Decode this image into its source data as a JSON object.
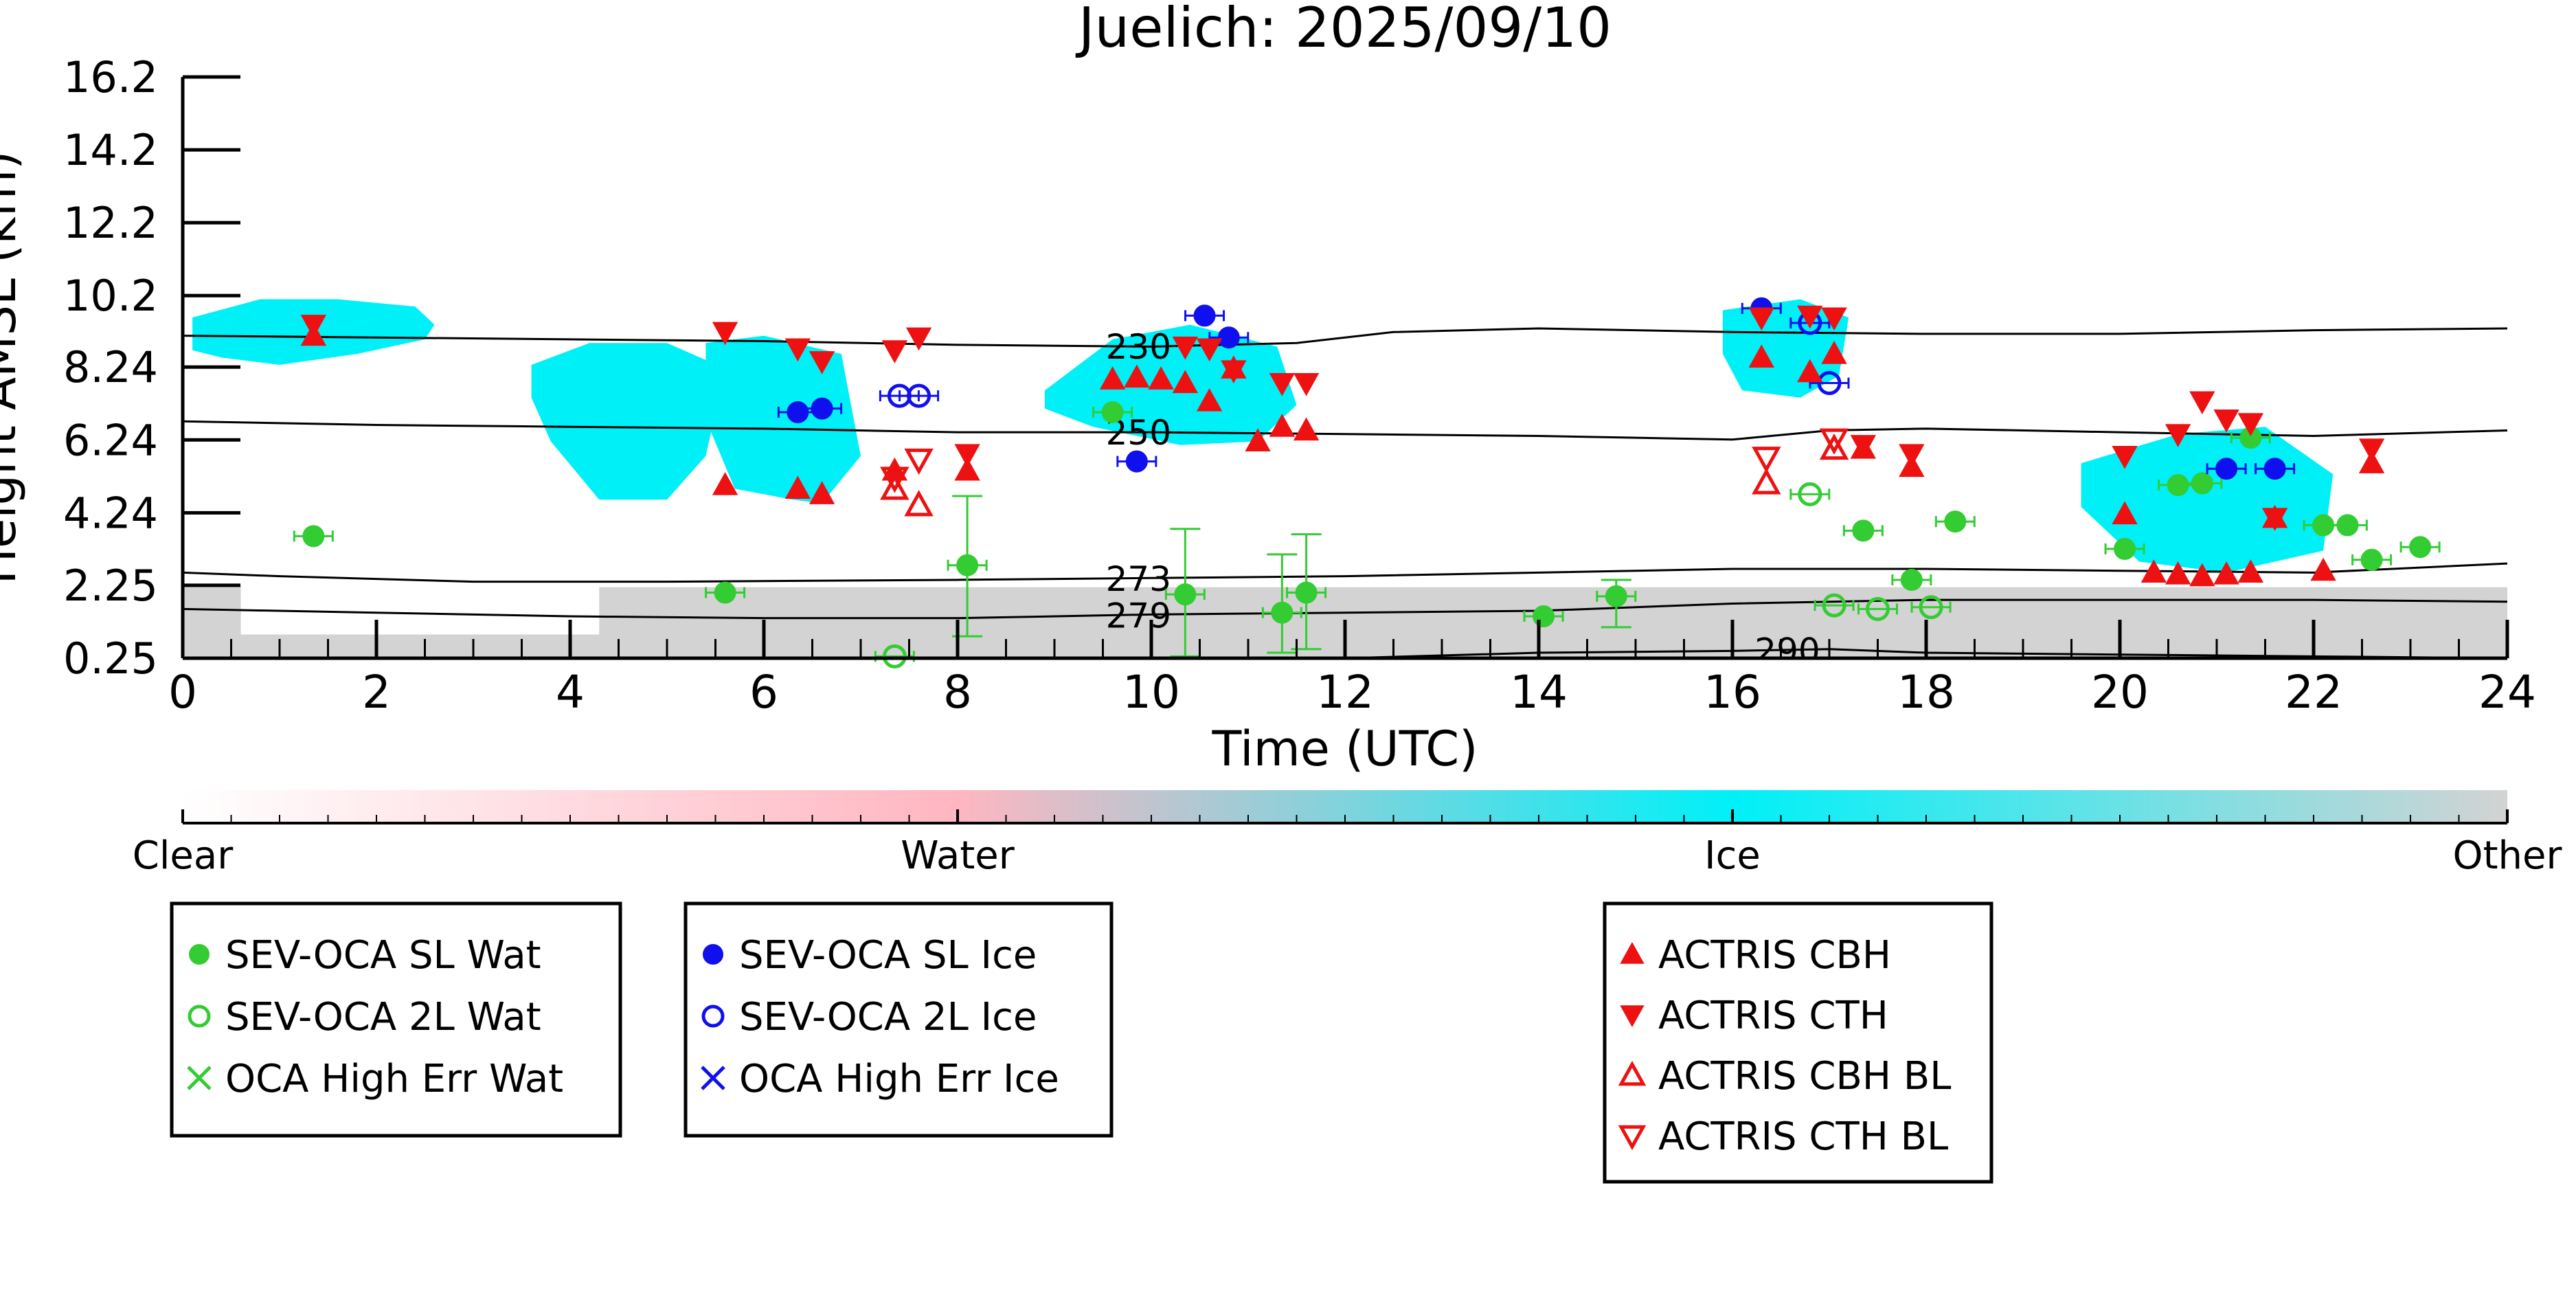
{
  "chart_data": {
    "type": "scatter",
    "title": "Juelich: 2025/09/10",
    "xlabel": "Time (UTC)",
    "ylabel": "Height AMSL (km)",
    "xlim": [
      0,
      24
    ],
    "ylim": [
      0.25,
      16.2
    ],
    "x_ticks": [
      "0",
      "2",
      "4",
      "6",
      "8",
      "10",
      "12",
      "14",
      "16",
      "18",
      "20",
      "22",
      "24"
    ],
    "y_ticks": [
      "0.25",
      "2.25",
      "4.24",
      "6.24",
      "8.24",
      "10.2",
      "12.2",
      "14.2",
      "16.2"
    ],
    "colorbar": {
      "labels": [
        "Clear",
        "Water",
        "Ice",
        "Other"
      ],
      "colors": {
        "clear": "#ffffff",
        "water": "#ffb6c1",
        "ice": "#00f0f8",
        "other": "#d3d3d3"
      }
    },
    "isotherms": [
      {
        "label": "230",
        "x": [
          0,
          2,
          4,
          6,
          8,
          10,
          11.5,
          12.5,
          14,
          16,
          18,
          20,
          22,
          24
        ],
        "y": [
          9.1,
          9.05,
          9.0,
          8.95,
          8.85,
          8.8,
          8.9,
          9.2,
          9.3,
          9.2,
          9.15,
          9.15,
          9.25,
          9.3
        ]
      },
      {
        "label": "250",
        "x": [
          0,
          2,
          4,
          6,
          8,
          10,
          12,
          14,
          16,
          17,
          18,
          20,
          22,
          24
        ],
        "y": [
          6.75,
          6.65,
          6.6,
          6.55,
          6.45,
          6.45,
          6.4,
          6.35,
          6.25,
          6.5,
          6.55,
          6.45,
          6.35,
          6.5
        ]
      },
      {
        "label": "273",
        "x": [
          0,
          1,
          3,
          5,
          8,
          10,
          12,
          14,
          16,
          18,
          20,
          22,
          24
        ],
        "y": [
          2.6,
          2.5,
          2.35,
          2.35,
          2.4,
          2.45,
          2.5,
          2.6,
          2.7,
          2.7,
          2.65,
          2.6,
          2.85
        ]
      },
      {
        "label": "279",
        "x": [
          0,
          2,
          4,
          6,
          8,
          10,
          12,
          14,
          16,
          18,
          20,
          22,
          24
        ],
        "y": [
          1.6,
          1.5,
          1.4,
          1.35,
          1.35,
          1.45,
          1.5,
          1.55,
          1.75,
          1.85,
          1.85,
          1.85,
          1.8
        ]
      },
      {
        "label": "290",
        "x": [
          12,
          14,
          16,
          17,
          18,
          20,
          22,
          24
        ],
        "y": [
          0.25,
          0.4,
          0.45,
          0.5,
          0.4,
          0.35,
          0.3,
          0.25
        ]
      }
    ],
    "cloud_regions": [
      {
        "type": "ice",
        "x": [
          0.1,
          0.8,
          1.6,
          2.4,
          2.6,
          2.5,
          1.8,
          1.0,
          0.4,
          0.1
        ],
        "y": [
          9.6,
          10.1,
          10.1,
          9.9,
          9.4,
          9.0,
          8.6,
          8.3,
          8.5,
          8.7
        ]
      },
      {
        "type": "ice",
        "x": [
          3.6,
          4.2,
          5.0,
          5.6,
          5.4,
          5.0,
          4.3,
          3.8,
          3.6
        ],
        "y": [
          8.3,
          8.9,
          8.9,
          8.2,
          5.8,
          4.6,
          4.6,
          6.2,
          7.4
        ]
      },
      {
        "type": "ice",
        "x": [
          5.4,
          6.0,
          6.8,
          7.0,
          6.6,
          6.3,
          5.7,
          5.4
        ],
        "y": [
          8.9,
          9.1,
          8.6,
          5.8,
          4.5,
          4.6,
          4.9,
          6.8
        ]
      },
      {
        "type": "ice",
        "x": [
          8.9,
          9.6,
          10.4,
          11.3,
          11.5,
          11.1,
          10.3,
          9.4,
          8.9
        ],
        "y": [
          7.6,
          9.0,
          9.4,
          8.8,
          7.2,
          6.2,
          6.1,
          6.6,
          7.1
        ]
      },
      {
        "type": "ice",
        "x": [
          15.9,
          16.7,
          17.2,
          17.1,
          16.7,
          16.1,
          15.9
        ],
        "y": [
          9.8,
          10.1,
          9.6,
          8.0,
          7.4,
          7.6,
          8.6
        ]
      },
      {
        "type": "ice",
        "x": [
          19.6,
          20.6,
          21.5,
          22.2,
          22.1,
          21.1,
          20.2,
          19.6
        ],
        "y": [
          5.6,
          6.4,
          6.6,
          5.3,
          3.2,
          2.6,
          2.9,
          4.4
        ]
      },
      {
        "type": "other",
        "x": [
          0.0,
          0.6,
          0.6,
          4.3,
          4.3,
          24.0,
          24.0,
          0.0
        ],
        "y": [
          2.25,
          2.25,
          0.9,
          0.9,
          2.2,
          2.2,
          0.25,
          0.25
        ]
      }
    ],
    "series": [
      {
        "name": "SEV-OCA SL Wat",
        "marker": "circle",
        "filled": true,
        "color": "#33cc33",
        "x": [
          1.35,
          5.6,
          8.1,
          9.6,
          10.35,
          11.35,
          11.6,
          14.05,
          14.8,
          17.35,
          17.85,
          18.3,
          20.05,
          20.6,
          20.85,
          21.35,
          22.1,
          22.35,
          22.6,
          23.1
        ],
        "y": [
          3.6,
          2.05,
          2.8,
          7.0,
          2.0,
          1.5,
          2.05,
          1.4,
          1.95,
          3.75,
          2.4,
          4.0,
          3.25,
          5.0,
          5.05,
          6.3,
          3.9,
          3.9,
          2.95,
          3.3
        ]
      },
      {
        "name": "SEV-OCA 2L Wat",
        "marker": "circle",
        "filled": false,
        "color": "#33cc33",
        "x": [
          7.35,
          16.8,
          17.05,
          17.5,
          18.05
        ],
        "y": [
          0.3,
          4.75,
          1.7,
          1.6,
          1.65
        ]
      },
      {
        "name": "OCA High Err Wat",
        "marker": "x",
        "filled": false,
        "color": "#33cc33",
        "x": [],
        "y": []
      },
      {
        "name": "SEV-OCA SL Ice",
        "marker": "circle",
        "filled": true,
        "color": "#1010ee",
        "x": [
          6.35,
          6.6,
          9.85,
          10.55,
          10.8,
          16.3,
          21.1,
          21.6
        ],
        "y": [
          7.0,
          7.1,
          5.65,
          9.65,
          9.05,
          9.85,
          5.45,
          5.45
        ]
      },
      {
        "name": "SEV-OCA 2L Ice",
        "marker": "circle",
        "filled": false,
        "color": "#1010ee",
        "x": [
          7.4,
          7.6,
          16.8,
          17.0
        ],
        "y": [
          7.45,
          7.45,
          9.45,
          7.8
        ]
      },
      {
        "name": "OCA High Err Ice",
        "marker": "x",
        "filled": false,
        "color": "#1010ee",
        "x": [],
        "y": []
      },
      {
        "name": "ACTRIS CBH",
        "marker": "triangle-up",
        "filled": true,
        "color": "#ee1111",
        "x": [
          1.35,
          5.6,
          6.35,
          6.6,
          7.35,
          8.1,
          9.6,
          9.85,
          10.1,
          10.35,
          10.6,
          10.85,
          11.1,
          11.35,
          11.6,
          16.3,
          16.8,
          17.05,
          17.35,
          17.85,
          20.05,
          20.35,
          20.6,
          20.85,
          21.1,
          21.35,
          21.6,
          22.1,
          22.6
        ],
        "y": [
          9.1,
          5.0,
          4.9,
          4.75,
          5.4,
          5.4,
          7.9,
          7.95,
          7.9,
          7.8,
          7.3,
          8.2,
          6.2,
          6.6,
          6.5,
          8.5,
          8.1,
          8.6,
          6.0,
          5.5,
          4.2,
          2.6,
          2.55,
          2.5,
          2.55,
          2.6,
          4.1,
          2.65,
          5.6
        ]
      },
      {
        "name": "ACTRIS CTH",
        "marker": "triangle-down",
        "filled": true,
        "color": "#ee1111",
        "x": [
          1.35,
          5.6,
          6.35,
          6.6,
          7.35,
          7.6,
          8.1,
          10.35,
          10.6,
          10.85,
          11.35,
          11.6,
          16.3,
          16.8,
          17.05,
          17.35,
          17.85,
          20.05,
          20.6,
          20.85,
          21.1,
          21.35,
          21.6,
          22.6
        ],
        "y": [
          9.4,
          9.2,
          8.75,
          8.4,
          8.7,
          9.05,
          5.85,
          8.8,
          8.75,
          8.15,
          7.8,
          7.8,
          9.6,
          9.65,
          9.6,
          6.1,
          5.85,
          5.8,
          6.4,
          7.3,
          6.8,
          6.7,
          4.1,
          6.0
        ]
      },
      {
        "name": "ACTRIS CBH BL",
        "marker": "triangle-up",
        "filled": false,
        "color": "#ee1111",
        "x": [
          7.35,
          7.6,
          16.35,
          17.05
        ],
        "y": [
          4.9,
          4.45,
          5.05,
          6.0
        ]
      },
      {
        "name": "ACTRIS CTH BL",
        "marker": "triangle-down",
        "filled": false,
        "color": "#ee1111",
        "x": [
          7.35,
          7.6,
          16.35,
          17.05
        ],
        "y": [
          5.2,
          5.7,
          5.75,
          6.25
        ]
      }
    ],
    "error_bars": [
      {
        "x": 8.1,
        "y_low": 0.85,
        "y_high": 4.7
      },
      {
        "x": 10.35,
        "y_low": 0.3,
        "y_high": 3.8
      },
      {
        "x": 11.35,
        "y_low": 0.4,
        "y_high": 3.1
      },
      {
        "x": 11.6,
        "y_low": 0.5,
        "y_high": 3.65
      },
      {
        "x": 14.8,
        "y_low": 1.1,
        "y_high": 2.4
      }
    ]
  }
}
